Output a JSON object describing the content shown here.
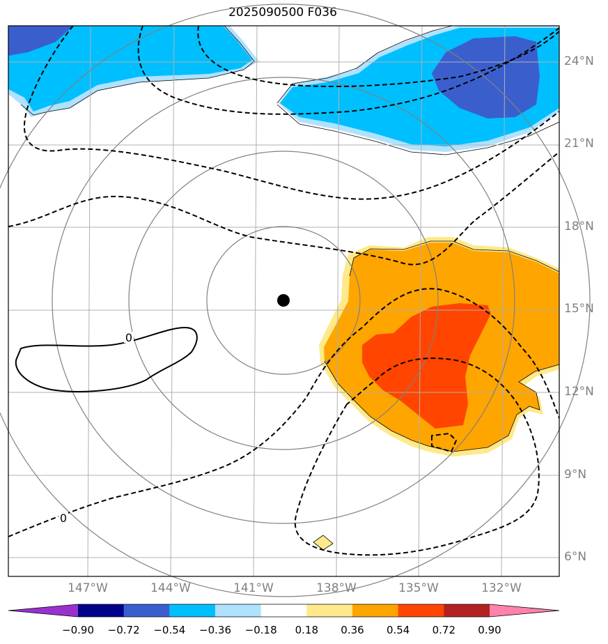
{
  "title": "2025090500 F036",
  "lat_labels": [
    "24°N",
    "21°N",
    "18°N",
    "15°N",
    "12°N",
    "9°N",
    "6°N"
  ],
  "lon_labels": [
    "147°W",
    "144°W",
    "141°W",
    "138°W",
    "135°W",
    "132°W"
  ],
  "contour_labels": {
    "solid_zero": "0",
    "dashed_zero": "0"
  },
  "colorbar": {
    "labels": [
      "−0.90",
      "−0.72",
      "−0.54",
      "−0.36",
      "−0.18",
      "0.18",
      "0.36",
      "0.54",
      "0.72",
      "0.90"
    ],
    "colors": [
      "#9932cc",
      "#00008b",
      "#3a5fcd",
      "#00bfff",
      "#b0e2ff",
      "#ffffff",
      "#ffe98a",
      "#ffa500",
      "#ff4500",
      "#b22222",
      "#ff82ab"
    ]
  },
  "center_marker": {
    "lat": 15.3,
    "lon": -139.9
  },
  "range_rings": 4,
  "colors": {
    "gridline": "#b0b0b0",
    "ring": "#808080",
    "axis_label": "#808080"
  }
}
